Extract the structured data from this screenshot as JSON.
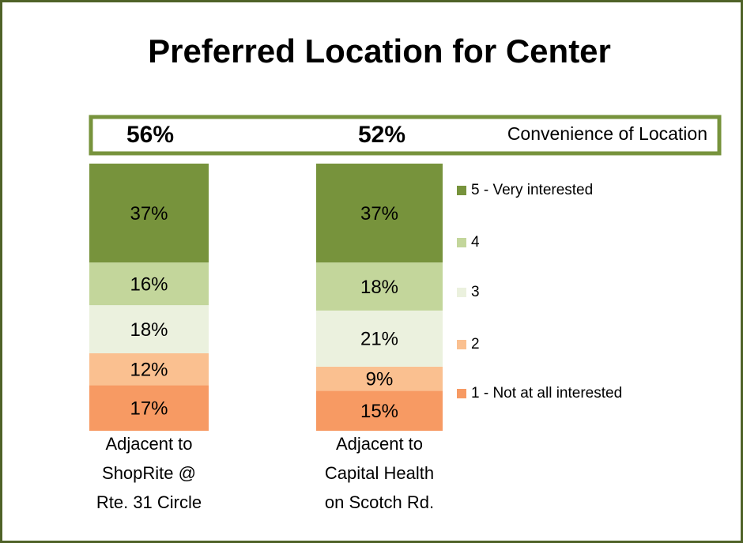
{
  "chart_data": {
    "type": "stacked_bar",
    "title": "Preferred Location for Center",
    "categories": [
      [
        "Adjacent to",
        "ShopRite @",
        "Rte. 31 Circle"
      ],
      [
        "Adjacent to",
        "Capital Health",
        "on Scotch Rd."
      ]
    ],
    "series": [
      {
        "name": "5 - Very interested",
        "color": "#77933c",
        "values": [
          37,
          37
        ],
        "value_labels": [
          "37%",
          "37%"
        ]
      },
      {
        "name": "4",
        "color": "#c3d69b",
        "values": [
          16,
          18
        ],
        "value_labels": [
          "16%",
          "18%"
        ]
      },
      {
        "name": "3",
        "color": "#ebf1de",
        "values": [
          18,
          21
        ],
        "value_labels": [
          "18%",
          "21%"
        ]
      },
      {
        "name": "2",
        "color": "#fac090",
        "values": [
          12,
          9
        ],
        "value_labels": [
          "12%",
          "9%"
        ]
      },
      {
        "name": "1 - Not at all interested",
        "color": "#f79a63",
        "values": [
          17,
          15
        ],
        "value_labels": [
          "17%",
          "15%"
        ]
      }
    ],
    "ylim": [
      0,
      100
    ],
    "legend": "right",
    "annotation": {
      "label": "Convenience of Location",
      "values": [
        56,
        52
      ],
      "value_labels": [
        "56%",
        "52%"
      ],
      "color": "#77933c"
    }
  }
}
